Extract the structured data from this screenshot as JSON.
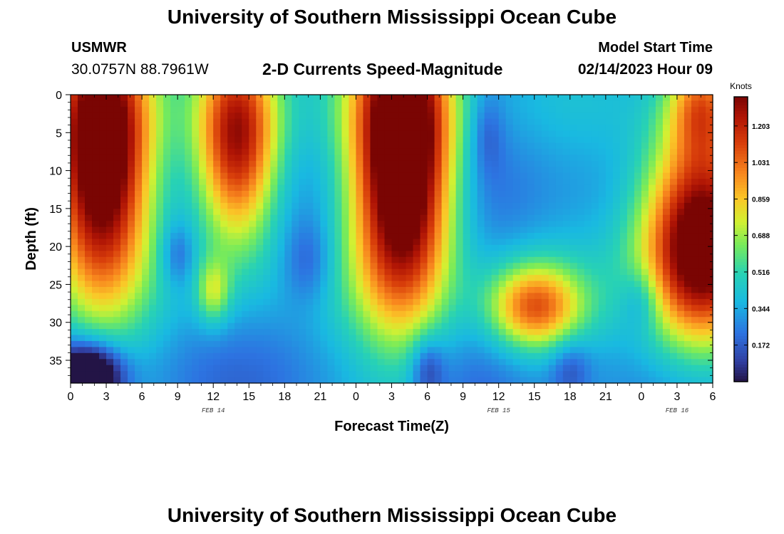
{
  "header": {
    "title": "University of Southern Mississippi Ocean Cube",
    "station": "USMWR",
    "coords": "30.0757N  88.7961W",
    "subtitle": "2-D Currents Speed-Magnitude",
    "model_label": "Model Start Time",
    "model_time": "02/14/2023 Hour 09"
  },
  "footer": {
    "title": "University of Southern Mississippi Ocean Cube"
  },
  "chart_data": {
    "type": "heatmap",
    "title": "2-D Currents Speed-Magnitude",
    "xlabel": "Forecast Time(Z)",
    "ylabel": "Depth (ft)",
    "colorbar_label": "Knots",
    "xlim": [
      0,
      54
    ],
    "ylim": [
      0,
      38
    ],
    "x_ticks": [
      0,
      3,
      6,
      9,
      12,
      15,
      18,
      21,
      24,
      27,
      30,
      33,
      36,
      39,
      42,
      45,
      48,
      51,
      54
    ],
    "x_tick_labels": [
      "0",
      "3",
      "6",
      "9",
      "12",
      "15",
      "18",
      "21",
      "0",
      "3",
      "6",
      "9",
      "12",
      "15",
      "18",
      "21",
      "0",
      "3",
      "6"
    ],
    "y_ticks": [
      0,
      5,
      10,
      15,
      20,
      25,
      30,
      35
    ],
    "y_tick_labels": [
      "0",
      "5",
      "10",
      "15",
      "20",
      "25",
      "30",
      "35"
    ],
    "date_labels": [
      {
        "x": 12,
        "label": "FEB 14"
      },
      {
        "x": 36,
        "label": "FEB 15"
      },
      {
        "x": 51,
        "label": "FEB 16"
      }
    ],
    "colorbar_ticks": [
      "1.203",
      "1.031",
      "0.859",
      "0.688",
      "0.516",
      "0.344",
      "0.172"
    ],
    "colorbar_tick_values": [
      1.203,
      1.031,
      0.859,
      0.688,
      0.516,
      0.344,
      0.172
    ],
    "value_range": [
      0,
      1.34
    ],
    "features": [
      {
        "x": 2.5,
        "depth": 8,
        "sx": 3.0,
        "sd": 13,
        "speed": 1.3
      },
      {
        "x": 14,
        "depth": 6,
        "sx": 2.5,
        "sd": 10,
        "speed": 1.05
      },
      {
        "x": 28,
        "depth": 8,
        "sx": 3.0,
        "sd": 15,
        "speed": 1.45
      },
      {
        "x": 53,
        "depth": 19,
        "sx": 3.5,
        "sd": 10,
        "speed": 1.3
      },
      {
        "x": 53,
        "depth": 1,
        "sx": 2,
        "sd": 5,
        "speed": 0.55
      },
      {
        "x": 39,
        "depth": 28,
        "sx": 2.8,
        "sd": 4,
        "speed": 0.72
      },
      {
        "x": 12,
        "depth": 26,
        "sx": 1.0,
        "sd": 3,
        "speed": 0.35
      }
    ],
    "low_spots": [
      {
        "x": 1.5,
        "depth": 37,
        "sx": 2,
        "sd": 3,
        "drop": 0.7
      },
      {
        "x": 9,
        "depth": 21,
        "sx": 1,
        "sd": 3,
        "drop": 0.2
      },
      {
        "x": 20,
        "depth": 22,
        "sx": 1.5,
        "sd": 4,
        "drop": 0.18
      },
      {
        "x": 30,
        "depth": 36,
        "sx": 1,
        "sd": 3,
        "drop": 0.25
      },
      {
        "x": 48,
        "depth": 27,
        "sx": 1.2,
        "sd": 3,
        "drop": 0.2
      },
      {
        "x": 42,
        "depth": 36,
        "sx": 1.2,
        "sd": 3,
        "drop": 0.18
      },
      {
        "x": 35,
        "depth": 5,
        "sx": 1,
        "sd": 4,
        "drop": 0.15
      }
    ]
  }
}
